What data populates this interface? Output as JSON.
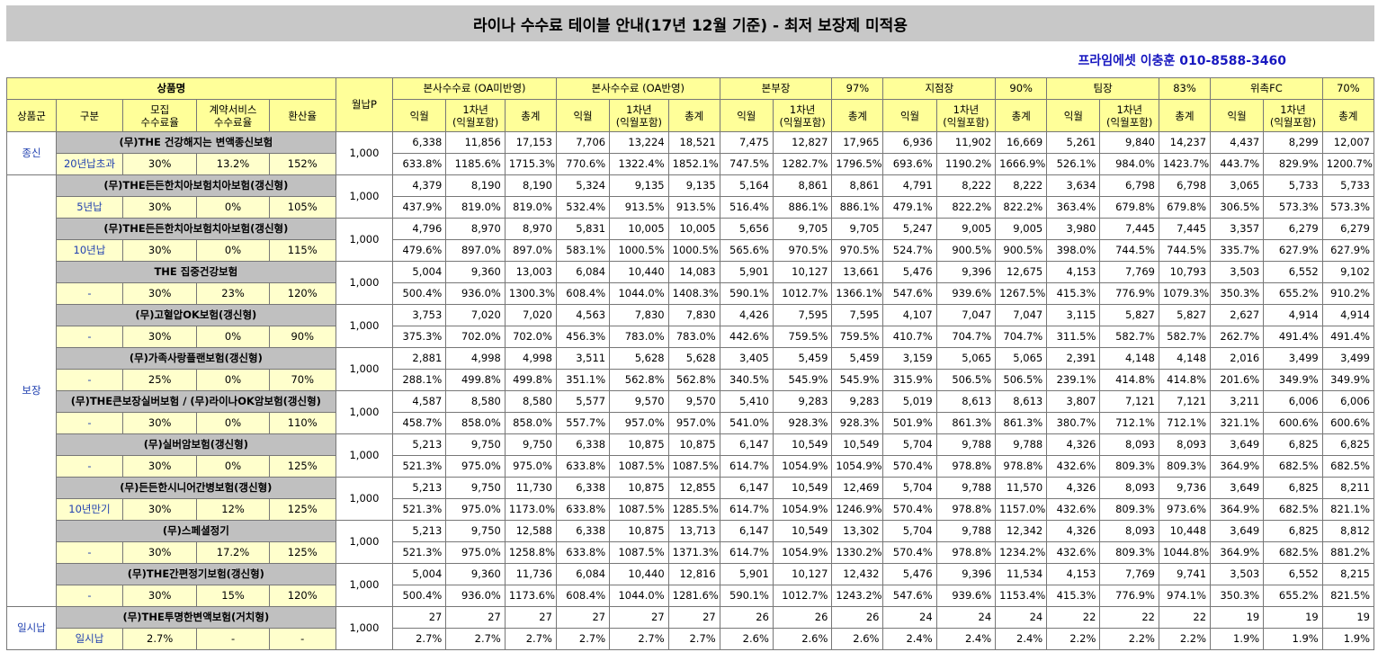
{
  "title": "라이나 수수료 테이블 안내(17년 12월 기준) - 최저 보장제 미적용",
  "contact": "프라임에셋 이충훈 010-8588-3460",
  "header1": {
    "product_name": "상품명",
    "monthly_premium": "월납P",
    "groups": [
      {
        "label": "본사수수료 (OA미반영)",
        "pct": ""
      },
      {
        "label": "본사수수료 (OA반영)",
        "pct": ""
      },
      {
        "label": "본부장",
        "pct": "97%"
      },
      {
        "label": "지점장",
        "pct": "90%"
      },
      {
        "label": "팀장",
        "pct": "83%"
      },
      {
        "label": "위촉FC",
        "pct": "70%"
      }
    ]
  },
  "header2": {
    "category": "상품군",
    "division": "구분",
    "collection_rate": "모집\n수수료율",
    "contract_rate": "계약서비스\n수수료율",
    "conversion_rate": "환산율",
    "col_ikwol": "익월",
    "col_year1": "1차년\n(익월포함)",
    "col_total": "총계"
  },
  "categories": [
    {
      "label": "종신",
      "rows": 1
    },
    {
      "label": "보장",
      "rows": 10
    },
    {
      "label": "일시납",
      "rows": 1
    }
  ],
  "products": [
    {
      "name": "(무)THE 건강해지는 변액종신보험",
      "division": "20년납초과",
      "collect": "30%",
      "contract": "13.2%",
      "conv": "152%",
      "premium": "1,000",
      "amounts": [
        "6,338",
        "11,856",
        "17,153",
        "7,706",
        "13,224",
        "18,521",
        "7,475",
        "12,827",
        "17,965",
        "6,936",
        "11,902",
        "16,669",
        "5,261",
        "9,840",
        "14,237",
        "4,437",
        "8,299",
        "12,007"
      ],
      "rates": [
        "633.8%",
        "1185.6%",
        "1715.3%",
        "770.6%",
        "1322.4%",
        "1852.1%",
        "747.5%",
        "1282.7%",
        "1796.5%",
        "693.6%",
        "1190.2%",
        "1666.9%",
        "526.1%",
        "984.0%",
        "1423.7%",
        "443.7%",
        "829.9%",
        "1200.7%"
      ]
    },
    {
      "name": "(무)THE든든한치아보험치아보험(갱신형)",
      "division": "5년납",
      "collect": "30%",
      "contract": "0%",
      "conv": "105%",
      "premium": "1,000",
      "amounts": [
        "4,379",
        "8,190",
        "8,190",
        "5,324",
        "9,135",
        "9,135",
        "5,164",
        "8,861",
        "8,861",
        "4,791",
        "8,222",
        "8,222",
        "3,634",
        "6,798",
        "6,798",
        "3,065",
        "5,733",
        "5,733"
      ],
      "rates": [
        "437.9%",
        "819.0%",
        "819.0%",
        "532.4%",
        "913.5%",
        "913.5%",
        "516.4%",
        "886.1%",
        "886.1%",
        "479.1%",
        "822.2%",
        "822.2%",
        "363.4%",
        "679.8%",
        "679.8%",
        "306.5%",
        "573.3%",
        "573.3%"
      ]
    },
    {
      "name": "(무)THE든든한치아보험치아보험(갱신형)",
      "division": "10년납",
      "collect": "30%",
      "contract": "0%",
      "conv": "115%",
      "premium": "1,000",
      "amounts": [
        "4,796",
        "8,970",
        "8,970",
        "5,831",
        "10,005",
        "10,005",
        "5,656",
        "9,705",
        "9,705",
        "5,247",
        "9,005",
        "9,005",
        "3,980",
        "7,445",
        "7,445",
        "3,357",
        "6,279",
        "6,279"
      ],
      "rates": [
        "479.6%",
        "897.0%",
        "897.0%",
        "583.1%",
        "1000.5%",
        "1000.5%",
        "565.6%",
        "970.5%",
        "970.5%",
        "524.7%",
        "900.5%",
        "900.5%",
        "398.0%",
        "744.5%",
        "744.5%",
        "335.7%",
        "627.9%",
        "627.9%"
      ]
    },
    {
      "name": "THE 집중건강보험",
      "division": "-",
      "collect": "30%",
      "contract": "23%",
      "conv": "120%",
      "premium": "1,000",
      "amounts": [
        "5,004",
        "9,360",
        "13,003",
        "6,084",
        "10,440",
        "14,083",
        "5,901",
        "10,127",
        "13,661",
        "5,476",
        "9,396",
        "12,675",
        "4,153",
        "7,769",
        "10,793",
        "3,503",
        "6,552",
        "9,102"
      ],
      "rates": [
        "500.4%",
        "936.0%",
        "1300.3%",
        "608.4%",
        "1044.0%",
        "1408.3%",
        "590.1%",
        "1012.7%",
        "1366.1%",
        "547.6%",
        "939.6%",
        "1267.5%",
        "415.3%",
        "776.9%",
        "1079.3%",
        "350.3%",
        "655.2%",
        "910.2%"
      ]
    },
    {
      "name": "(무)고혈압OK보험(갱신형)",
      "division": "-",
      "collect": "30%",
      "contract": "0%",
      "conv": "90%",
      "premium": "1,000",
      "amounts": [
        "3,753",
        "7,020",
        "7,020",
        "4,563",
        "7,830",
        "7,830",
        "4,426",
        "7,595",
        "7,595",
        "4,107",
        "7,047",
        "7,047",
        "3,115",
        "5,827",
        "5,827",
        "2,627",
        "4,914",
        "4,914"
      ],
      "rates": [
        "375.3%",
        "702.0%",
        "702.0%",
        "456.3%",
        "783.0%",
        "783.0%",
        "442.6%",
        "759.5%",
        "759.5%",
        "410.7%",
        "704.7%",
        "704.7%",
        "311.5%",
        "582.7%",
        "582.7%",
        "262.7%",
        "491.4%",
        "491.4%"
      ]
    },
    {
      "name": "(무)가족사랑플랜보험(갱신형)",
      "division": "-",
      "collect": "25%",
      "contract": "0%",
      "conv": "70%",
      "premium": "1,000",
      "amounts": [
        "2,881",
        "4,998",
        "4,998",
        "3,511",
        "5,628",
        "5,628",
        "3,405",
        "5,459",
        "5,459",
        "3,159",
        "5,065",
        "5,065",
        "2,391",
        "4,148",
        "4,148",
        "2,016",
        "3,499",
        "3,499"
      ],
      "rates": [
        "288.1%",
        "499.8%",
        "499.8%",
        "351.1%",
        "562.8%",
        "562.8%",
        "340.5%",
        "545.9%",
        "545.9%",
        "315.9%",
        "506.5%",
        "506.5%",
        "239.1%",
        "414.8%",
        "414.8%",
        "201.6%",
        "349.9%",
        "349.9%"
      ]
    },
    {
      "name": "(무)THE큰보장실버보험 / (무)라이나OK암보험(갱신형)",
      "division": "-",
      "collect": "30%",
      "contract": "0%",
      "conv": "110%",
      "premium": "1,000",
      "amounts": [
        "4,587",
        "8,580",
        "8,580",
        "5,577",
        "9,570",
        "9,570",
        "5,410",
        "9,283",
        "9,283",
        "5,019",
        "8,613",
        "8,613",
        "3,807",
        "7,121",
        "7,121",
        "3,211",
        "6,006",
        "6,006"
      ],
      "rates": [
        "458.7%",
        "858.0%",
        "858.0%",
        "557.7%",
        "957.0%",
        "957.0%",
        "541.0%",
        "928.3%",
        "928.3%",
        "501.9%",
        "861.3%",
        "861.3%",
        "380.7%",
        "712.1%",
        "712.1%",
        "321.1%",
        "600.6%",
        "600.6%"
      ]
    },
    {
      "name": "(무)실버암보험(갱신형)",
      "division": "-",
      "collect": "30%",
      "contract": "0%",
      "conv": "125%",
      "premium": "1,000",
      "amounts": [
        "5,213",
        "9,750",
        "9,750",
        "6,338",
        "10,875",
        "10,875",
        "6,147",
        "10,549",
        "10,549",
        "5,704",
        "9,788",
        "9,788",
        "4,326",
        "8,093",
        "8,093",
        "3,649",
        "6,825",
        "6,825"
      ],
      "rates": [
        "521.3%",
        "975.0%",
        "975.0%",
        "633.8%",
        "1087.5%",
        "1087.5%",
        "614.7%",
        "1054.9%",
        "1054.9%",
        "570.4%",
        "978.8%",
        "978.8%",
        "432.6%",
        "809.3%",
        "809.3%",
        "364.9%",
        "682.5%",
        "682.5%"
      ]
    },
    {
      "name": "(무)든든한시니어간병보험(갱신형)",
      "division": "10년만기",
      "collect": "30%",
      "contract": "12%",
      "conv": "125%",
      "premium": "1,000",
      "amounts": [
        "5,213",
        "9,750",
        "11,730",
        "6,338",
        "10,875",
        "12,855",
        "6,147",
        "10,549",
        "12,469",
        "5,704",
        "9,788",
        "11,570",
        "4,326",
        "8,093",
        "9,736",
        "3,649",
        "6,825",
        "8,211"
      ],
      "rates": [
        "521.3%",
        "975.0%",
        "1173.0%",
        "633.8%",
        "1087.5%",
        "1285.5%",
        "614.7%",
        "1054.9%",
        "1246.9%",
        "570.4%",
        "978.8%",
        "1157.0%",
        "432.6%",
        "809.3%",
        "973.6%",
        "364.9%",
        "682.5%",
        "821.1%"
      ]
    },
    {
      "name": "(무)스페셜정기",
      "division": "-",
      "collect": "30%",
      "contract": "17.2%",
      "conv": "125%",
      "premium": "1,000",
      "amounts": [
        "5,213",
        "9,750",
        "12,588",
        "6,338",
        "10,875",
        "13,713",
        "6,147",
        "10,549",
        "13,302",
        "5,704",
        "9,788",
        "12,342",
        "4,326",
        "8,093",
        "10,448",
        "3,649",
        "6,825",
        "8,812"
      ],
      "rates": [
        "521.3%",
        "975.0%",
        "1258.8%",
        "633.8%",
        "1087.5%",
        "1371.3%",
        "614.7%",
        "1054.9%",
        "1330.2%",
        "570.4%",
        "978.8%",
        "1234.2%",
        "432.6%",
        "809.3%",
        "1044.8%",
        "364.9%",
        "682.5%",
        "881.2%"
      ]
    },
    {
      "name": "(무)THE간편정기보험(갱신형)",
      "division": "-",
      "collect": "30%",
      "contract": "15%",
      "conv": "120%",
      "premium": "1,000",
      "amounts": [
        "5,004",
        "9,360",
        "11,736",
        "6,084",
        "10,440",
        "12,816",
        "5,901",
        "10,127",
        "12,432",
        "5,476",
        "9,396",
        "11,534",
        "4,153",
        "7,769",
        "9,741",
        "3,503",
        "6,552",
        "8,215"
      ],
      "rates": [
        "500.4%",
        "936.0%",
        "1173.6%",
        "608.4%",
        "1044.0%",
        "1281.6%",
        "590.1%",
        "1012.7%",
        "1243.2%",
        "547.6%",
        "939.6%",
        "1153.4%",
        "415.3%",
        "776.9%",
        "974.1%",
        "350.3%",
        "655.2%",
        "821.5%"
      ]
    },
    {
      "name": "(무)THE투명한변액보험(거치형)",
      "division": "일시납",
      "collect": "2.7%",
      "contract": "-",
      "conv": "-",
      "premium": "1,000",
      "amounts": [
        "27",
        "27",
        "27",
        "27",
        "27",
        "27",
        "26",
        "26",
        "26",
        "24",
        "24",
        "24",
        "22",
        "22",
        "22",
        "19",
        "19",
        "19"
      ],
      "rates": [
        "2.7%",
        "2.7%",
        "2.7%",
        "2.7%",
        "2.7%",
        "2.7%",
        "2.6%",
        "2.6%",
        "2.6%",
        "2.4%",
        "2.4%",
        "2.4%",
        "2.2%",
        "2.2%",
        "2.2%",
        "1.9%",
        "1.9%",
        "1.9%"
      ]
    }
  ]
}
